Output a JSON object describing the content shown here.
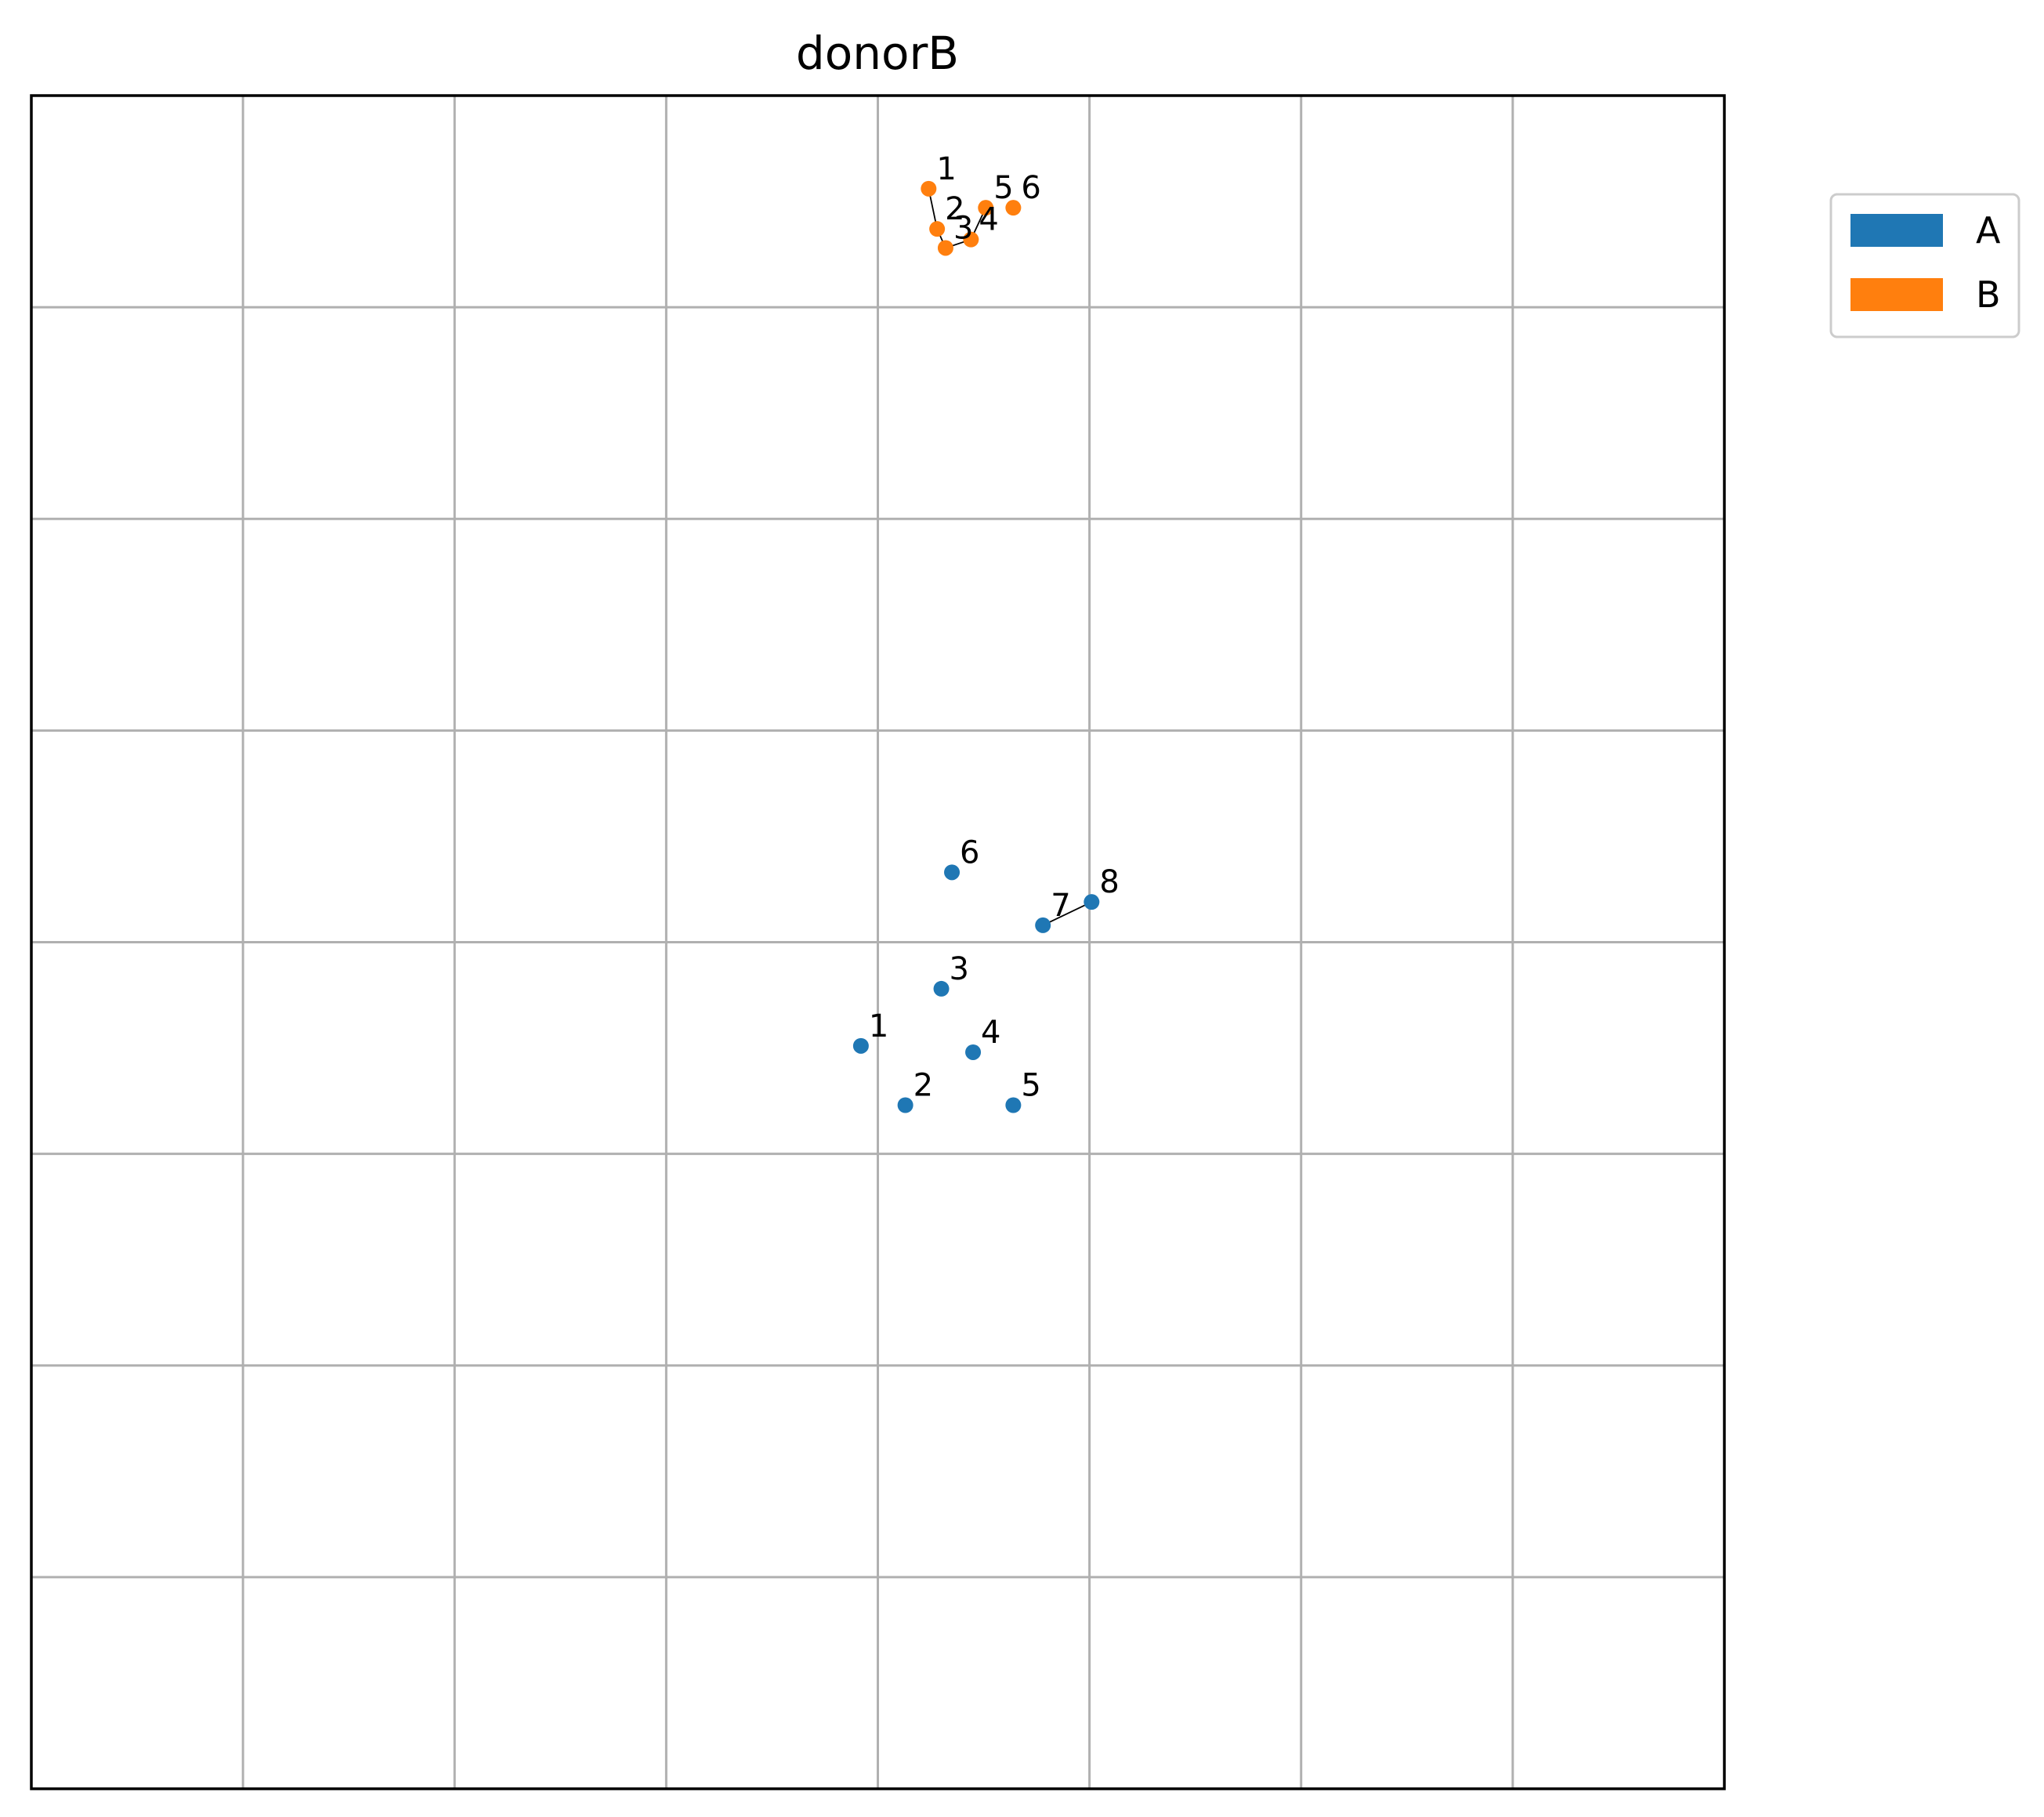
{
  "chart_data": {
    "type": "scatter",
    "title": "donorB",
    "xlabel": "",
    "ylabel": "",
    "xlim": [
      0,
      8
    ],
    "ylim": [
      0,
      8
    ],
    "grid": true,
    "ticks_visible": false,
    "legend_position": "outside-top-right",
    "series": [
      {
        "name": "A",
        "color": "#1f77b4",
        "points": [
          {
            "label": "1",
            "x": 3.92,
            "y": 3.51
          },
          {
            "label": "2",
            "x": 4.13,
            "y": 3.23
          },
          {
            "label": "3",
            "x": 4.3,
            "y": 3.78
          },
          {
            "label": "4",
            "x": 4.45,
            "y": 3.48
          },
          {
            "label": "5",
            "x": 4.64,
            "y": 3.23
          },
          {
            "label": "6",
            "x": 4.35,
            "y": 4.33
          },
          {
            "label": "7",
            "x": 4.78,
            "y": 4.08
          },
          {
            "label": "8",
            "x": 5.01,
            "y": 4.19
          }
        ],
        "connected": [
          [
            "7",
            "8"
          ]
        ]
      },
      {
        "name": "B",
        "color": "#ff7f0e",
        "points": [
          {
            "label": "1",
            "x": 4.24,
            "y": 7.56
          },
          {
            "label": "2",
            "x": 4.28,
            "y": 7.37
          },
          {
            "label": "3",
            "x": 4.32,
            "y": 7.28
          },
          {
            "label": "4",
            "x": 4.44,
            "y": 7.32
          },
          {
            "label": "5",
            "x": 4.51,
            "y": 7.47
          },
          {
            "label": "6",
            "x": 4.64,
            "y": 7.47
          }
        ],
        "connected": [
          [
            "1",
            "2"
          ],
          [
            "2",
            "3"
          ],
          [
            "3",
            "4"
          ],
          [
            "4",
            "5"
          ]
        ]
      }
    ]
  }
}
